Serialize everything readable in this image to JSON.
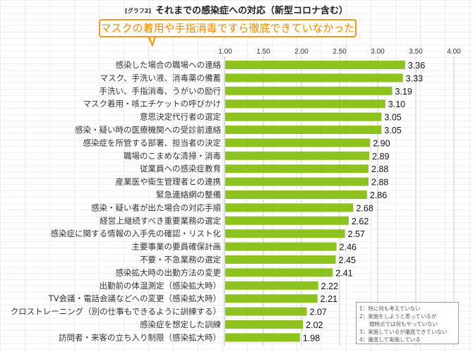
{
  "title": {
    "prefix": "[グラフ2]",
    "text": "それまでの感染症への対応（新型コロナ含む）"
  },
  "callout": {
    "text": "マスクの着用や手指消毒ですら徹底できていなかった",
    "border_color": "#f29a1c",
    "text_color": "#ee8a00"
  },
  "legend": {
    "items": [
      "1：特に何も考えていない",
      "2：実施をしようと思っているが",
      "現時点では何もやっていない",
      "3：実施しているが徹底できていない",
      "4：徹底して実施している"
    ]
  },
  "chart_data": {
    "type": "bar",
    "orientation": "horizontal",
    "title": "それまでの感染症への対応（新型コロナ含む）",
    "bar_color": "#8dc21f",
    "xlim": [
      1.0,
      4.0
    ],
    "ticks": [
      "1.00",
      "1.50",
      "2.00",
      "2.50",
      "3.00",
      "3.50",
      "4.00"
    ],
    "tick_values": [
      1.0,
      1.5,
      2.0,
      2.5,
      3.0,
      3.5,
      4.0
    ],
    "grid": true,
    "categories": [
      "感染した場合の職場への連絡",
      "マスク、手洗い液、消毒薬の備蓄",
      "手洗い、手指消毒、うがいの励行",
      "マスク着用・咳エチケットの呼びかけ",
      "意思決定代行者の選定",
      "感染・疑い時の医療機関への受診前連絡",
      "感染症を所管する部署、担当者の決定",
      "職場のこまめな清掃・消毒",
      "従業員への感染症教育",
      "産業医や衛生管理者との連携",
      "緊急連絡網の整備",
      "感染・疑い者が出た場合の対応手順",
      "経営上継続すべき重要業務の選定",
      "感染症に関する情報の入手先の確認・リスト化",
      "主要事業の要員確保計画",
      "不要・不急業務の選定",
      "感染拡大時の出勤方法の変更",
      "出勤前の体温測定（感染拡大時）",
      "TV会議・電話会議などへの変更（感染拡大時）",
      "クロストレーニング（別の仕事もできるように訓練する）",
      "感染症を想定した訓練",
      "訪問者・来客の立ち入り制限（感染拡大時）"
    ],
    "values": [
      3.36,
      3.33,
      3.19,
      3.1,
      3.05,
      3.05,
      2.9,
      2.89,
      2.88,
      2.88,
      2.86,
      2.68,
      2.62,
      2.57,
      2.46,
      2.45,
      2.41,
      2.22,
      2.21,
      2.07,
      2.02,
      1.98
    ],
    "value_labels": [
      "3.36",
      "3.33",
      "3.19",
      "3.10",
      "3.05",
      "3.05",
      "2.90",
      "2.89",
      "2.88",
      "2.88",
      "2.86",
      "2.68",
      "2.62",
      "2.57",
      "2.46",
      "2.45",
      "2.41",
      "2.22",
      "2.21",
      "2.07",
      "2.02",
      "1.98"
    ]
  }
}
